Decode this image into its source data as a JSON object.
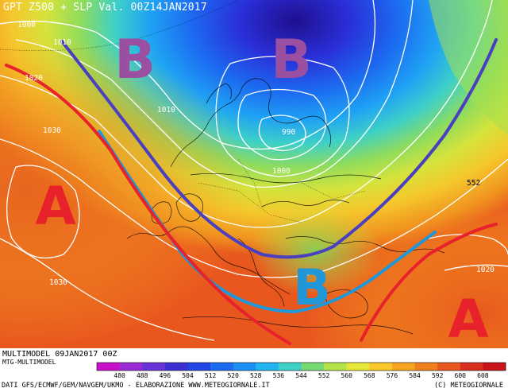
{
  "title": "GPT Z500 + SLP Val. 00Z14JAN2017",
  "model_info": "MULTIMODEL 09JAN2017 00Z",
  "model_source": "MTG-MULTIMODEL",
  "credits": "DATI GFS/ECMWF/GEM/NAVGEM/UKMO - ELABORAZIONE WWW.METEOGIORNALE.IT",
  "copyright": "(C) METEOGIORNALE",
  "colorbar": {
    "units": "gpdam",
    "labels": [
      "480",
      "488",
      "496",
      "504",
      "512",
      "520",
      "528",
      "536",
      "544",
      "552",
      "560",
      "568",
      "576",
      "584",
      "592",
      "600",
      "608"
    ],
    "colors": [
      "#c90fc9",
      "#9b2ad6",
      "#6a33d8",
      "#3b2fd2",
      "#2146e4",
      "#1c6af0",
      "#1c8ff4",
      "#22b4f0",
      "#3ed0c8",
      "#77da72",
      "#b7e34a",
      "#e7e63a",
      "#f9c92b",
      "#f7a520",
      "#f07f1e",
      "#e8571e",
      "#d8301e",
      "#c9141a"
    ]
  },
  "pressure_centers": [
    {
      "symbol": "B",
      "meaning": "low",
      "color": "#9b4fa0"
    },
    {
      "symbol": "B",
      "meaning": "low",
      "color": "#9b4fa0"
    },
    {
      "symbol": "B",
      "meaning": "low",
      "color": "#1f97d8"
    },
    {
      "symbol": "A",
      "meaning": "high",
      "color": "#e8222a"
    },
    {
      "symbol": "A",
      "meaning": "high",
      "color": "#e8222a"
    }
  ],
  "isobar_labels": [
    "1000",
    "1010",
    "1020",
    "1030",
    "1010",
    "990",
    "1000",
    "1030",
    "1020"
  ],
  "contour_labels": [
    "552"
  ]
}
